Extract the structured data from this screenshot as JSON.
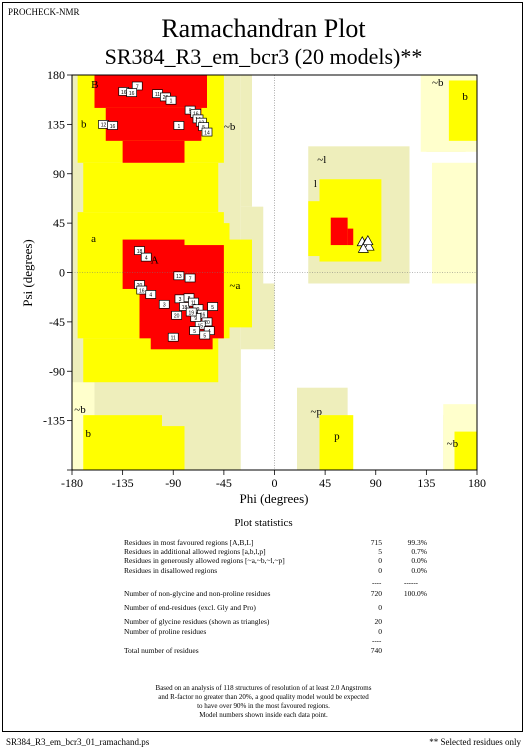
{
  "header": {
    "program": "PROCHECK-NMR",
    "title": "Ramachandran Plot",
    "subtitle": "SR384_R3_em_bcr3 (20 models)**"
  },
  "colors": {
    "most_favoured": "#ff0000",
    "additional_allowed": "#ffff00",
    "generously_allowed": "#eeeebb",
    "glycine_favoured": "#ffff00",
    "glycine_allowed": "#ffffcc",
    "background": "#ffffff"
  },
  "chart_data": {
    "type": "scatter",
    "xlabel": "Phi (degrees)",
    "ylabel": "Psi (degrees)",
    "xlim": [
      -180,
      180
    ],
    "ylim": [
      -180,
      180
    ],
    "xticks": [
      "-180",
      "-135",
      "-90",
      "-45",
      "0",
      "45",
      "90",
      "135",
      "180"
    ],
    "yticks": [
      "180",
      "135",
      "90",
      "45",
      "0",
      "-45",
      "-90",
      "-135"
    ],
    "region_labels": [
      {
        "text": "B",
        "phi": -163,
        "psi": 168
      },
      {
        "text": "b",
        "phi": -172,
        "psi": 132
      },
      {
        "text": "~b",
        "phi": -45,
        "psi": 130
      },
      {
        "text": "~l",
        "phi": 38,
        "psi": 100
      },
      {
        "text": "l",
        "phi": 35,
        "psi": 78
      },
      {
        "text": "a",
        "phi": -163,
        "psi": 28
      },
      {
        "text": "A",
        "phi": -110,
        "psi": 8
      },
      {
        "text": "~a",
        "phi": -40,
        "psi": -15
      },
      {
        "text": "~b",
        "phi": -178,
        "psi": -128
      },
      {
        "text": "b",
        "phi": -168,
        "psi": -150
      },
      {
        "text": "~p",
        "phi": 32,
        "psi": -130
      },
      {
        "text": "p",
        "phi": 53,
        "psi": -152
      },
      {
        "text": "~b",
        "phi": 140,
        "psi": 170
      },
      {
        "text": "b",
        "phi": 167,
        "psi": 157
      },
      {
        "text": "~b",
        "phi": 153,
        "psi": -159
      }
    ],
    "series": [
      {
        "marker": "square",
        "points": [
          {
            "phi": -122,
            "psi": 170,
            "label": "7"
          },
          {
            "phi": -134,
            "psi": 165,
            "label": "16"
          },
          {
            "phi": -127,
            "psi": 164,
            "label": "16"
          },
          {
            "phi": -104,
            "psi": 163,
            "label": "11"
          },
          {
            "phi": -97,
            "psi": 160,
            "label": "20"
          },
          {
            "phi": -92,
            "psi": 157,
            "label": "1"
          },
          {
            "phi": -75,
            "psi": 148,
            "label": "5"
          },
          {
            "phi": -70,
            "psi": 145,
            "label": "16"
          },
          {
            "phi": -68,
            "psi": 140,
            "label": "14"
          },
          {
            "phi": -65,
            "psi": 137,
            "label": "12"
          },
          {
            "phi": -63,
            "psi": 133,
            "label": "5"
          },
          {
            "phi": -60,
            "psi": 128,
            "label": "14"
          },
          {
            "phi": -152,
            "psi": 135,
            "label": "12"
          },
          {
            "phi": -144,
            "psi": 134,
            "label": "16"
          },
          {
            "phi": -85,
            "psi": 134,
            "label": "1"
          },
          {
            "phi": -120,
            "psi": 20,
            "label": "18"
          },
          {
            "phi": -114,
            "psi": 14,
            "label": "4"
          },
          {
            "phi": -85,
            "psi": -3,
            "label": "13"
          },
          {
            "phi": -75,
            "psi": -5,
            "label": "7"
          },
          {
            "phi": -120,
            "psi": -11,
            "label": "20"
          },
          {
            "phi": -118,
            "psi": -16,
            "label": "16"
          },
          {
            "phi": -110,
            "psi": -20,
            "label": "4"
          },
          {
            "phi": -98,
            "psi": -29,
            "label": "3"
          },
          {
            "phi": -84,
            "psi": -24,
            "label": "3"
          },
          {
            "phi": -80,
            "psi": -31,
            "label": "18"
          },
          {
            "phi": -76,
            "psi": -23,
            "label": "8"
          },
          {
            "phi": -72,
            "psi": -27,
            "label": "11"
          },
          {
            "phi": -68,
            "psi": -33,
            "label": "9"
          },
          {
            "phi": -64,
            "psi": -38,
            "label": "16"
          },
          {
            "phi": -60,
            "psi": -45,
            "label": "20"
          },
          {
            "phi": -66,
            "psi": -48,
            "label": "15"
          },
          {
            "phi": -70,
            "psi": -41,
            "label": "9"
          },
          {
            "phi": -74,
            "psi": -36,
            "label": "19"
          },
          {
            "phi": -87,
            "psi": -39,
            "label": "20"
          },
          {
            "phi": -90,
            "psi": -59,
            "label": "11"
          },
          {
            "phi": -58,
            "psi": -53,
            "label": "4"
          },
          {
            "phi": -55,
            "psi": -31,
            "label": "5"
          },
          {
            "phi": -71,
            "psi": -53,
            "label": "5"
          },
          {
            "phi": -62,
            "psi": -57,
            "label": "5"
          }
        ]
      },
      {
        "marker": "triangle",
        "points": [
          {
            "phi": 78,
            "psi": 28,
            "label": ""
          },
          {
            "phi": 81,
            "psi": 26,
            "label": ""
          },
          {
            "phi": 84,
            "psi": 24,
            "label": ""
          },
          {
            "phi": 79,
            "psi": 22,
            "label": ""
          },
          {
            "phi": 83,
            "psi": 29,
            "label": ""
          }
        ]
      }
    ]
  },
  "statistics": {
    "title": "Plot statistics",
    "rows": [
      {
        "label": "Residues in most favoured regions  [A,B,L]",
        "count": "715",
        "percent": "99.3%"
      },
      {
        "label": "Residues in additional allowed regions  [a,b,l,p]",
        "count": "5",
        "percent": "0.7%"
      },
      {
        "label": "Residues in generously allowed regions  [~a,~b,~l,~p]",
        "count": "0",
        "percent": "0.0%"
      },
      {
        "label": "Residues in disallowed regions",
        "count": "0",
        "percent": "0.0%"
      },
      {
        "label": "Number of non-glycine and non-proline residues",
        "count": "720",
        "percent": "100.0%"
      },
      {
        "label": "Number of end-residues (excl. Gly and Pro)",
        "count": "0",
        "percent": ""
      },
      {
        "label": "Number of glycine residues (shown as triangles)",
        "count": "20",
        "percent": ""
      },
      {
        "label": "Number of proline residues",
        "count": "0",
        "percent": ""
      },
      {
        "label": "Total number of residues",
        "count": "740",
        "percent": ""
      }
    ],
    "dashes_short": "----",
    "dashes_long": "------"
  },
  "note": {
    "line1": "Based on an analysis of 118 structures of resolution of at least 2.0 Angstroms",
    "line2": "and R-factor no greater than 20%, a good quality model would be expected",
    "line3": "to have over 90% in the most favoured regions.",
    "line4": "Model numbers shown inside each data point."
  },
  "footer": {
    "file": "SR384_R3_em_bcr3_01_ramachand.ps",
    "selected": "** Selected residues only"
  }
}
